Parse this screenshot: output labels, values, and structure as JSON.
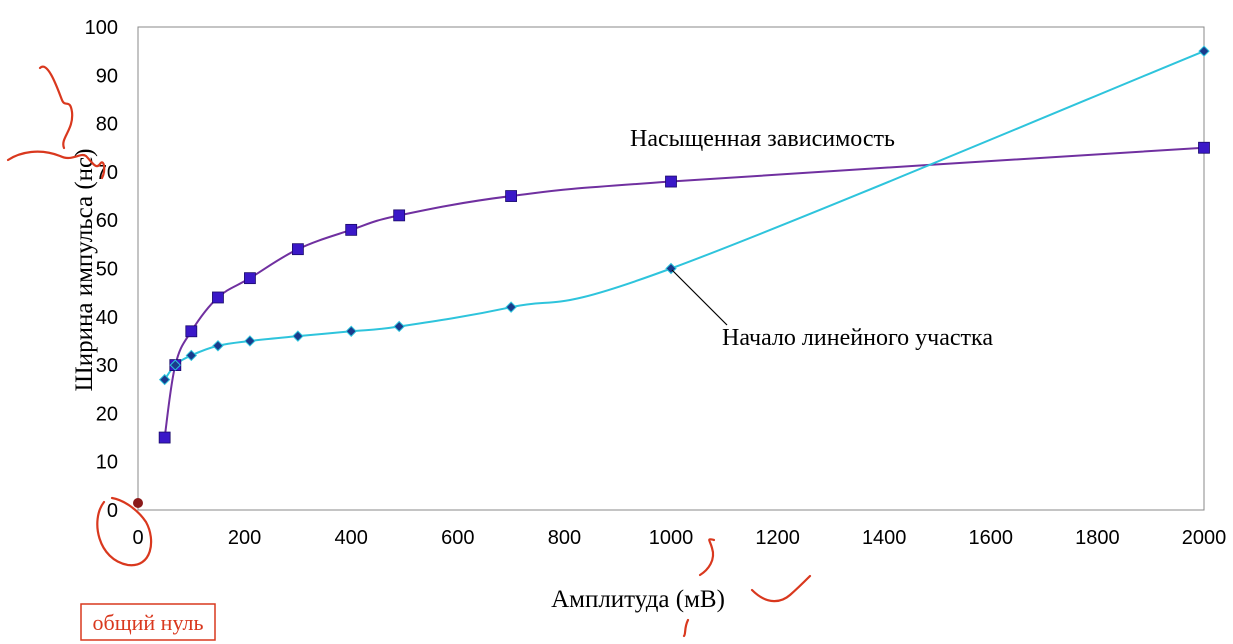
{
  "chart_data": {
    "type": "line",
    "title": "",
    "xlabel": "Амплитуда (мВ)",
    "ylabel": "Ширина импульса (нс)",
    "xlim": [
      0,
      2000
    ],
    "ylim": [
      0,
      100
    ],
    "xticks": [
      0,
      200,
      400,
      600,
      800,
      1000,
      1200,
      1400,
      1600,
      1800,
      2000
    ],
    "yticks": [
      0,
      10,
      20,
      30,
      40,
      50,
      60,
      70,
      80,
      90,
      100
    ],
    "grid": false,
    "series": [
      {
        "color": "#7030a0",
        "marker_color": "#3a18c8",
        "marker": "square",
        "x": [
          50,
          70,
          100,
          150,
          210,
          300,
          400,
          490,
          700,
          1000,
          2000
        ],
        "y": [
          15,
          30,
          37,
          44,
          48,
          54,
          58,
          61,
          65,
          68,
          75
        ]
      },
      {
        "color": "#2ec4dc",
        "marker_color": "#1a3a8c",
        "marker": "diamond",
        "x": [
          50,
          70,
          100,
          150,
          210,
          300,
          400,
          490,
          700,
          1000,
          2000
        ],
        "y": [
          27,
          30,
          32,
          34,
          35,
          36,
          37,
          38,
          42,
          50,
          95
        ]
      }
    ],
    "annotations": [
      {
        "text": "Насыщенная зависимость"
      },
      {
        "text": "Начало линейного участка",
        "points_to": [
          1000,
          50
        ]
      }
    ],
    "origin_point": {
      "x": 0,
      "y": 0,
      "color": "#8b1a1a"
    }
  },
  "handwritten_note": {
    "text": "общий нуль",
    "color": "#d9381e"
  }
}
